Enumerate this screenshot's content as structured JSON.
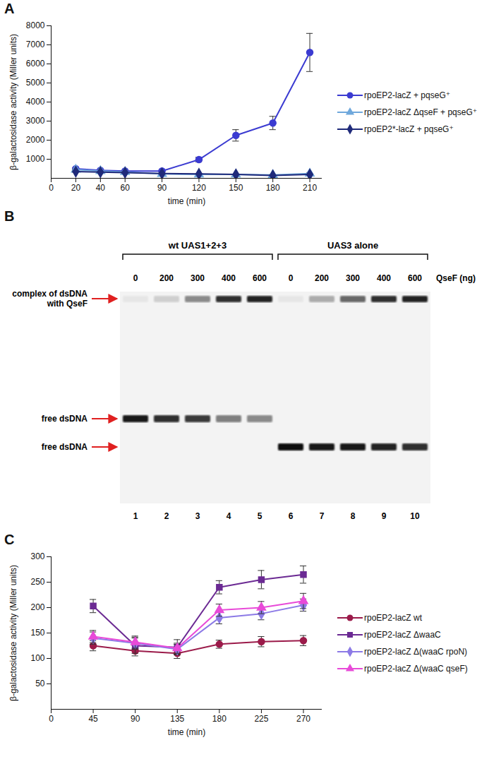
{
  "chart_data": [
    {
      "panel": "A",
      "type": "line",
      "x_label": "time (min)",
      "y_label": "β-galactosidase activity (Miller units)",
      "x": [
        20,
        40,
        60,
        90,
        120,
        150,
        180,
        210
      ],
      "xlim": [
        0,
        220
      ],
      "xticks": [
        0,
        20,
        40,
        60,
        90,
        120,
        150,
        180,
        210
      ],
      "ylim": [
        0,
        8000
      ],
      "yticks": [
        1000,
        2000,
        3000,
        4000,
        5000,
        6000,
        7000,
        8000
      ],
      "grid": false,
      "legend": "right",
      "series": [
        {
          "name": "rpoEP2-lacZ + pqseG⁺",
          "color": "#3b3bd1",
          "marker": "circle",
          "line_style": "solid",
          "values": [
            500,
            420,
            380,
            380,
            980,
            2250,
            2900,
            6600
          ],
          "errors": [
            60,
            40,
            40,
            40,
            120,
            300,
            350,
            1000
          ]
        },
        {
          "name": "rpoEP2-lacZ ΔqseF + pqseG⁺",
          "color": "#6fa8dc",
          "marker": "triangle",
          "line_style": "solid",
          "values": [
            450,
            380,
            330,
            230,
            200,
            200,
            180,
            250
          ],
          "errors": [
            40,
            30,
            30,
            20,
            20,
            20,
            20,
            30
          ]
        },
        {
          "name": "rpoEP2*-lacZ + pqseG⁺",
          "color": "#1f2a7a",
          "marker": "diamond",
          "line_style": "solid",
          "values": [
            350,
            320,
            300,
            250,
            230,
            200,
            150,
            200
          ],
          "errors": [
            30,
            30,
            30,
            20,
            20,
            20,
            20,
            20
          ]
        }
      ]
    },
    {
      "panel": "C",
      "type": "line",
      "x_label": "time (min)",
      "y_label": "β-galactosidase activity (Miller units)",
      "x": [
        45,
        90,
        135,
        180,
        225,
        270
      ],
      "xlim": [
        0,
        290
      ],
      "xticks": [
        0,
        45,
        90,
        135,
        180,
        225,
        270
      ],
      "ylim": [
        0,
        300
      ],
      "yticks": [
        50,
        100,
        150,
        200,
        250,
        300
      ],
      "grid": false,
      "legend": "right",
      "series": [
        {
          "name": "rpoEP2-lacZ wt",
          "color": "#9b1b4a",
          "marker": "circle",
          "line_style": "solid",
          "values": [
            125,
            115,
            110,
            128,
            133,
            135
          ],
          "errors": [
            10,
            10,
            10,
            8,
            10,
            10
          ]
        },
        {
          "name": "rpoEP2-lacZ ΔwaaC",
          "color": "#6b2a93",
          "marker": "square",
          "line_style": "solid",
          "values": [
            203,
            125,
            122,
            240,
            255,
            265
          ],
          "errors": [
            13,
            15,
            15,
            13,
            18,
            17
          ]
        },
        {
          "name": "rpoEP2-lacZ Δ(waaC rpoN)",
          "color": "#8c7ae6",
          "marker": "diamond",
          "line_style": "solid",
          "values": [
            140,
            130,
            118,
            180,
            188,
            205
          ],
          "errors": [
            12,
            12,
            10,
            12,
            12,
            12
          ]
        },
        {
          "name": "rpoEP2-lacZ Δ(waaC qseF)",
          "color": "#e84ad8",
          "marker": "triangle",
          "line_style": "solid",
          "values": [
            143,
            132,
            120,
            195,
            200,
            213
          ],
          "errors": [
            12,
            12,
            10,
            12,
            12,
            15
          ]
        }
      ]
    }
  ],
  "gel": {
    "panel": "B",
    "amount_label": "QseF (ng)",
    "complex_label": "complex of dsDNA with QseF",
    "groups": [
      {
        "label": "wt UAS1+2+3",
        "free_label": "free dsDNA",
        "lanes": [
          1,
          2,
          3,
          4,
          5
        ]
      },
      {
        "label": "UAS3 alone",
        "free_label": "free dsDNA",
        "lanes": [
          6,
          7,
          8,
          9,
          10
        ]
      }
    ],
    "lanes": [
      {
        "number": 1,
        "qsef_ng": 0,
        "complex_intensity": 0.05,
        "free_intensity": 0.95
      },
      {
        "number": 2,
        "qsef_ng": 200,
        "complex_intensity": 0.15,
        "free_intensity": 0.85
      },
      {
        "number": 3,
        "qsef_ng": 300,
        "complex_intensity": 0.45,
        "free_intensity": 0.8
      },
      {
        "number": 4,
        "qsef_ng": 400,
        "complex_intensity": 0.85,
        "free_intensity": 0.5
      },
      {
        "number": 5,
        "qsef_ng": 600,
        "complex_intensity": 0.9,
        "free_intensity": 0.45
      },
      {
        "number": 6,
        "qsef_ng": 0,
        "complex_intensity": 0.05,
        "free_intensity": 1
      },
      {
        "number": 7,
        "qsef_ng": 200,
        "complex_intensity": 0.3,
        "free_intensity": 0.95
      },
      {
        "number": 8,
        "qsef_ng": 300,
        "complex_intensity": 0.6,
        "free_intensity": 0.95
      },
      {
        "number": 9,
        "qsef_ng": 400,
        "complex_intensity": 0.85,
        "free_intensity": 0.9
      },
      {
        "number": 10,
        "qsef_ng": 600,
        "complex_intensity": 0.9,
        "free_intensity": 0.85
      }
    ]
  }
}
